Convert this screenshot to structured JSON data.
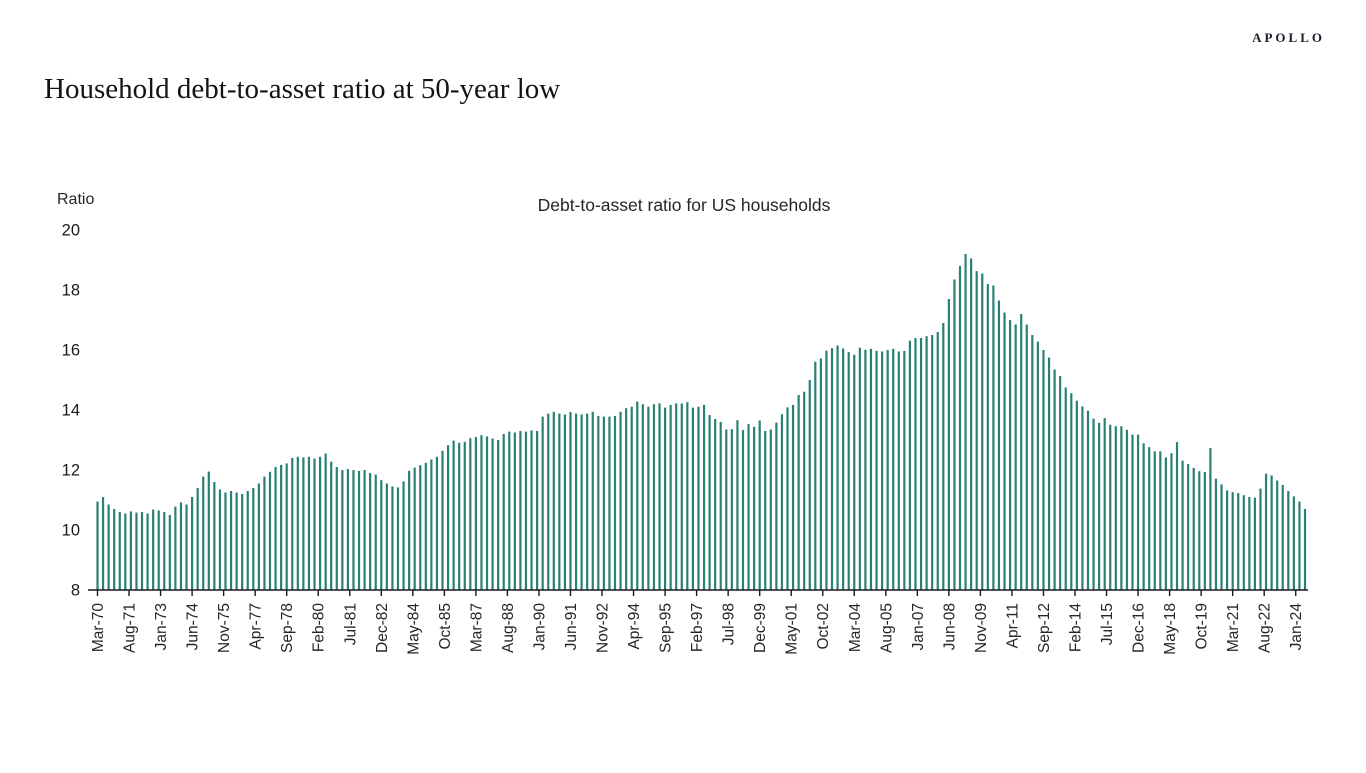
{
  "header": {
    "logo": "APOLLO",
    "title": "Household debt-to-asset ratio at 50-year low"
  },
  "chart_data": {
    "type": "bar",
    "title": "Debt-to-asset ratio for US households",
    "y_axis_label": "Ratio",
    "ylim": [
      8,
      20
    ],
    "y_ticks": [
      8,
      10,
      12,
      14,
      16,
      18,
      20
    ],
    "gridlines": false,
    "legend": "none",
    "bar_color": "#2A8073",
    "axis_color": "#1a1a1a",
    "text_color": "#262626",
    "frequency": "quarterly",
    "x_start": "Mar-70",
    "x_end": "Jun-24",
    "x_tick_interval_months": 17,
    "x_tick_labels": [
      "Mar-70",
      "Aug-71",
      "Jan-73",
      "Jun-74",
      "Nov-75",
      "Apr-77",
      "Sep-78",
      "Feb-80",
      "Jul-81",
      "Dec-82",
      "May-84",
      "Oct-85",
      "Mar-87",
      "Aug-88",
      "Jan-90",
      "Jun-91",
      "Nov-92",
      "Apr-94",
      "Sep-95",
      "Feb-97",
      "Jul-98",
      "Dec-99",
      "May-01",
      "Oct-02",
      "Mar-04",
      "Aug-05",
      "Jan-07",
      "Jun-08",
      "Nov-09",
      "Apr-11",
      "Sep-12",
      "Feb-14",
      "Jul-15",
      "Dec-16",
      "May-18",
      "Oct-19",
      "Mar-21",
      "Aug-22",
      "Jan-24"
    ],
    "values": [
      10.95,
      11.1,
      10.85,
      10.7,
      10.6,
      10.55,
      10.62,
      10.58,
      10.6,
      10.55,
      10.68,
      10.65,
      10.6,
      10.5,
      10.78,
      10.92,
      10.85,
      11.1,
      11.4,
      11.78,
      11.95,
      11.6,
      11.35,
      11.25,
      11.3,
      11.25,
      11.2,
      11.3,
      11.4,
      11.55,
      11.78,
      11.94,
      12.1,
      12.17,
      12.22,
      12.4,
      12.44,
      12.42,
      12.44,
      12.38,
      12.44,
      12.55,
      12.28,
      12.1,
      12.0,
      12.03,
      12.0,
      11.97,
      12.0,
      11.9,
      11.85,
      11.66,
      11.55,
      11.45,
      11.42,
      11.62,
      11.97,
      12.08,
      12.16,
      12.24,
      12.35,
      12.44,
      12.64,
      12.83,
      12.98,
      12.91,
      12.94,
      13.06,
      13.1,
      13.16,
      13.12,
      13.05,
      13.0,
      13.2,
      13.28,
      13.25,
      13.3,
      13.28,
      13.32,
      13.3,
      13.78,
      13.88,
      13.94,
      13.88,
      13.85,
      13.93,
      13.88,
      13.85,
      13.88,
      13.94,
      13.8,
      13.78,
      13.78,
      13.8,
      13.94,
      14.06,
      14.11,
      14.28,
      14.19,
      14.11,
      14.19,
      14.22,
      14.08,
      14.17,
      14.22,
      14.22,
      14.26,
      14.08,
      14.11,
      14.17,
      13.83,
      13.7,
      13.6,
      13.35,
      13.36,
      13.66,
      13.33,
      13.53,
      13.44,
      13.65,
      13.3,
      13.35,
      13.58,
      13.86,
      14.09,
      14.17,
      14.5,
      14.61,
      15.0,
      15.61,
      15.72,
      15.98,
      16.06,
      16.15,
      16.05,
      15.93,
      15.84,
      16.08,
      16.01,
      16.04,
      15.97,
      15.95,
      16.0,
      16.04,
      15.95,
      15.97,
      16.31,
      16.4,
      16.4,
      16.46,
      16.5,
      16.6,
      16.9,
      17.7,
      18.35,
      18.8,
      19.2,
      19.05,
      18.63,
      18.55,
      18.2,
      18.15,
      17.65,
      17.25,
      17.0,
      16.85,
      17.2,
      16.85,
      16.5,
      16.28,
      16.0,
      15.75,
      15.35,
      15.13,
      14.75,
      14.56,
      14.31,
      14.12,
      13.98,
      13.71,
      13.57,
      13.73,
      13.51,
      13.46,
      13.46,
      13.34,
      13.18,
      13.18,
      12.89,
      12.76,
      12.62,
      12.62,
      12.42,
      12.56,
      12.93,
      12.31,
      12.2,
      12.07,
      11.96,
      11.93,
      12.73,
      11.71,
      11.52,
      11.32,
      11.26,
      11.23,
      11.16,
      11.1,
      11.08,
      11.38,
      11.88,
      11.82,
      11.65,
      11.5,
      11.3,
      11.12,
      10.95,
      10.7
    ]
  }
}
